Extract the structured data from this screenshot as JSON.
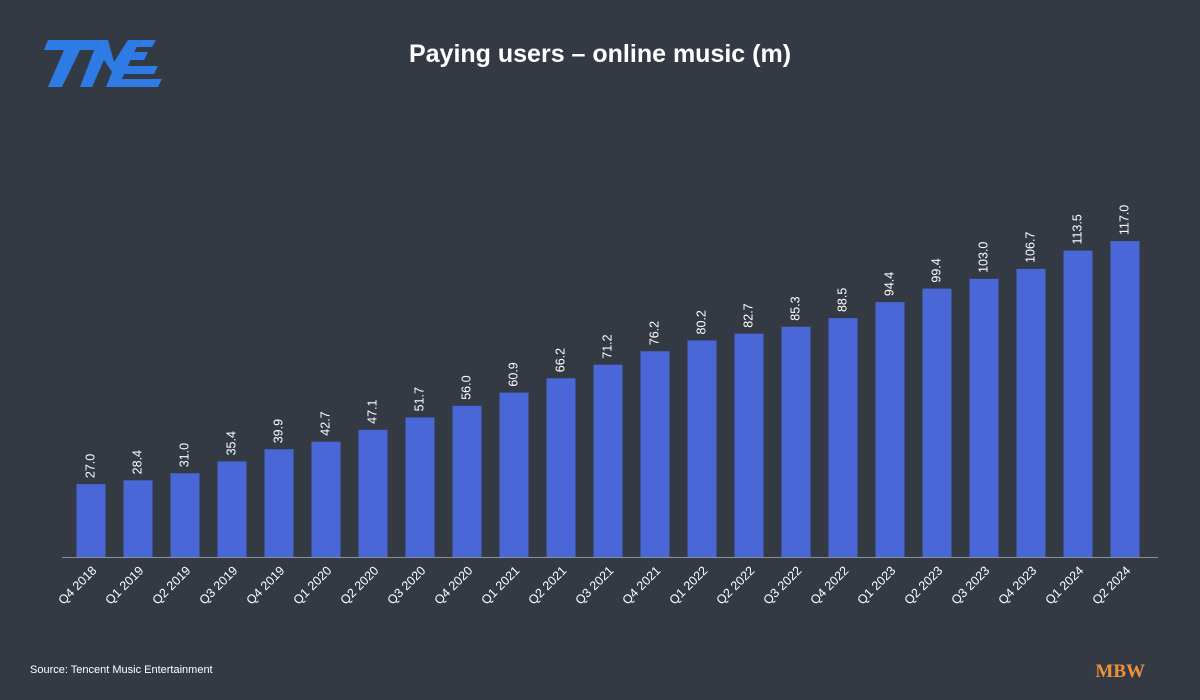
{
  "chart_data": {
    "type": "bar",
    "title": "Paying users – online music (m)",
    "categories": [
      "Q4 2018",
      "Q1 2019",
      "Q2 2019",
      "Q3 2019",
      "Q4 2019",
      "Q1 2020",
      "Q2 2020",
      "Q3 2020",
      "Q4 2020",
      "Q1 2021",
      "Q2 2021",
      "Q3 2021",
      "Q4 2021",
      "Q1 2022",
      "Q2 2022",
      "Q3 2022",
      "Q4 2022",
      "Q1 2023",
      "Q2 2023",
      "Q3 2023",
      "Q4 2023",
      "Q1 2024",
      "Q2 2024"
    ],
    "values": [
      27.0,
      28.4,
      31.0,
      35.4,
      39.9,
      42.7,
      47.1,
      51.7,
      56.0,
      60.9,
      66.2,
      71.2,
      76.2,
      80.2,
      82.7,
      85.3,
      88.5,
      94.4,
      99.4,
      103.0,
      106.7,
      113.5,
      117.0
    ],
    "value_labels": [
      "27.0",
      "28.4",
      "31.0",
      "35.4",
      "39.9",
      "42.7",
      "47.1",
      "51.7",
      "56.0",
      "60.9",
      "66.2",
      "71.2",
      "76.2",
      "80.2",
      "82.7",
      "85.3",
      "88.5",
      "94.4",
      "99.4",
      "103.0",
      "106.7",
      "113.5",
      "117.0"
    ],
    "color": "#4a67d8",
    "ylim": [
      0,
      130
    ],
    "grid": false,
    "source": "Source: Tencent Music Entertainment",
    "logo_text": "MBW"
  }
}
